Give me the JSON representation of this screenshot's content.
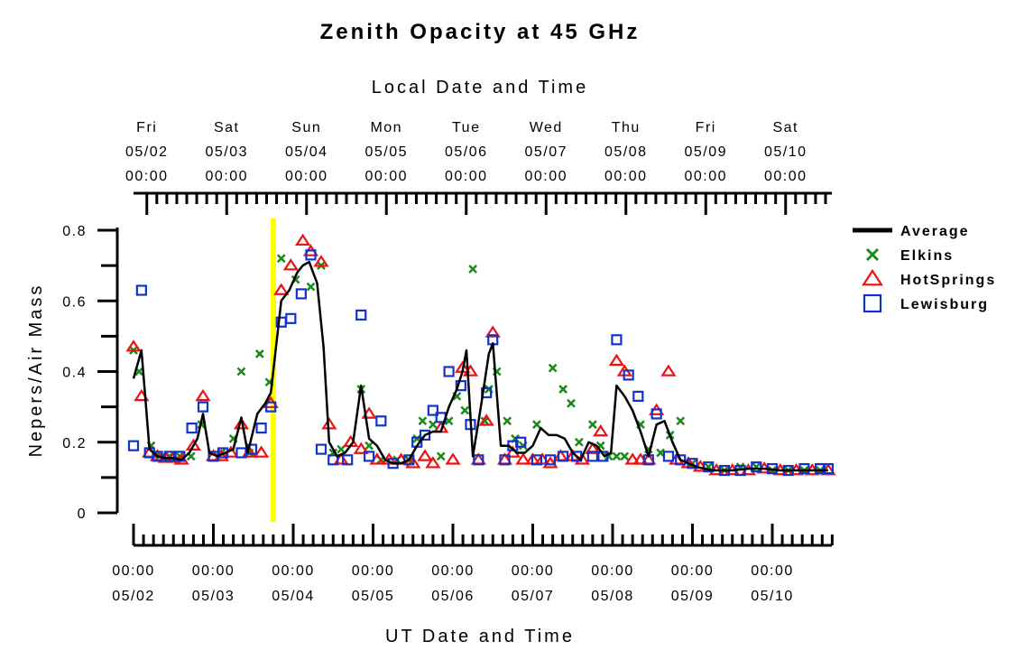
{
  "chart_data": {
    "type": "line",
    "title": "Zenith Opacity at 45 GHz",
    "top_axis": {
      "title": "Local Date and Time",
      "ticks": [
        {
          "day": "Fri",
          "date": "05/02",
          "time": "00:00"
        },
        {
          "day": "Sat",
          "date": "05/03",
          "time": "00:00"
        },
        {
          "day": "Sun",
          "date": "05/04",
          "time": "00:00"
        },
        {
          "day": "Mon",
          "date": "05/05",
          "time": "00:00"
        },
        {
          "day": "Tue",
          "date": "05/06",
          "time": "00:00"
        },
        {
          "day": "Wed",
          "date": "05/07",
          "time": "00:00"
        },
        {
          "day": "Thu",
          "date": "05/08",
          "time": "00:00"
        },
        {
          "day": "Fri",
          "date": "05/09",
          "time": "00:00"
        },
        {
          "day": "Sat",
          "date": "05/10",
          "time": "00:00"
        }
      ]
    },
    "bottom_axis": {
      "title": "UT Date and Time",
      "ticks": [
        {
          "time": "00:00",
          "date": "05/02"
        },
        {
          "time": "00:00",
          "date": "05/03"
        },
        {
          "time": "00:00",
          "date": "05/04"
        },
        {
          "time": "00:00",
          "date": "05/05"
        },
        {
          "time": "00:00",
          "date": "05/06"
        },
        {
          "time": "00:00",
          "date": "05/07"
        },
        {
          "time": "00:00",
          "date": "05/08"
        },
        {
          "time": "00:00",
          "date": "05/09"
        },
        {
          "time": "00:00",
          "date": "05/10"
        }
      ]
    },
    "y_axis": {
      "title": "Nepers/Air Mass",
      "ticks": [
        "0",
        "0.2",
        "0.4",
        "0.6",
        "0.8"
      ],
      "range": [
        0,
        0.8
      ]
    },
    "x_range_days": [
      0,
      8.75
    ],
    "marker_line_x": 1.75,
    "colors": {
      "average": "#000000",
      "elkins": "#1a8a1a",
      "hotsprings": "#ee1111",
      "lewisburg": "#1133cc",
      "marker": "#ffff00"
    },
    "legend": [
      {
        "key": "average",
        "label": "Average",
        "symbol": "line-icon"
      },
      {
        "key": "elkins",
        "label": "Elkins",
        "symbol": "x-icon"
      },
      {
        "key": "hotsprings",
        "label": "HotSprings",
        "symbol": "triangle-icon"
      },
      {
        "key": "lewisburg",
        "label": "Lewisburg",
        "symbol": "square-icon"
      }
    ],
    "series": [
      {
        "name": "Average",
        "key": "average",
        "kind": "line",
        "points": [
          [
            0.0,
            0.38
          ],
          [
            0.1,
            0.46
          ],
          [
            0.2,
            0.18
          ],
          [
            0.3,
            0.16
          ],
          [
            0.4,
            0.155
          ],
          [
            0.5,
            0.155
          ],
          [
            0.6,
            0.15
          ],
          [
            0.7,
            0.17
          ],
          [
            0.8,
            0.21
          ],
          [
            0.87,
            0.28
          ],
          [
            0.95,
            0.17
          ],
          [
            1.05,
            0.16
          ],
          [
            1.15,
            0.17
          ],
          [
            1.25,
            0.18
          ],
          [
            1.35,
            0.27
          ],
          [
            1.43,
            0.17
          ],
          [
            1.55,
            0.28
          ],
          [
            1.65,
            0.31
          ],
          [
            1.72,
            0.34
          ],
          [
            1.85,
            0.6
          ],
          [
            1.95,
            0.63
          ],
          [
            2.05,
            0.68
          ],
          [
            2.12,
            0.7
          ],
          [
            2.2,
            0.71
          ],
          [
            2.3,
            0.65
          ],
          [
            2.38,
            0.47
          ],
          [
            2.45,
            0.2
          ],
          [
            2.55,
            0.16
          ],
          [
            2.65,
            0.17
          ],
          [
            2.75,
            0.2
          ],
          [
            2.85,
            0.36
          ],
          [
            2.95,
            0.21
          ],
          [
            3.05,
            0.19
          ],
          [
            3.15,
            0.15
          ],
          [
            3.25,
            0.14
          ],
          [
            3.35,
            0.14
          ],
          [
            3.45,
            0.15
          ],
          [
            3.55,
            0.19
          ],
          [
            3.65,
            0.22
          ],
          [
            3.75,
            0.23
          ],
          [
            3.85,
            0.23
          ],
          [
            3.95,
            0.3
          ],
          [
            4.05,
            0.35
          ],
          [
            4.12,
            0.4
          ],
          [
            4.17,
            0.46
          ],
          [
            4.25,
            0.16
          ],
          [
            4.35,
            0.3
          ],
          [
            4.45,
            0.45
          ],
          [
            4.5,
            0.48
          ],
          [
            4.6,
            0.19
          ],
          [
            4.7,
            0.19
          ],
          [
            4.8,
            0.17
          ],
          [
            4.9,
            0.17
          ],
          [
            5.0,
            0.19
          ],
          [
            5.1,
            0.24
          ],
          [
            5.2,
            0.22
          ],
          [
            5.3,
            0.22
          ],
          [
            5.4,
            0.21
          ],
          [
            5.5,
            0.17
          ],
          [
            5.6,
            0.15
          ],
          [
            5.7,
            0.2
          ],
          [
            5.8,
            0.19
          ],
          [
            5.9,
            0.16
          ],
          [
            5.98,
            0.17
          ],
          [
            6.05,
            0.36
          ],
          [
            6.15,
            0.33
          ],
          [
            6.25,
            0.29
          ],
          [
            6.35,
            0.23
          ],
          [
            6.45,
            0.16
          ],
          [
            6.55,
            0.25
          ],
          [
            6.65,
            0.26
          ],
          [
            6.75,
            0.2
          ],
          [
            6.85,
            0.15
          ],
          [
            6.95,
            0.14
          ],
          [
            7.05,
            0.13
          ],
          [
            7.15,
            0.125
          ],
          [
            7.25,
            0.12
          ],
          [
            7.35,
            0.12
          ],
          [
            7.5,
            0.12
          ],
          [
            7.7,
            0.125
          ],
          [
            7.9,
            0.125
          ],
          [
            8.1,
            0.12
          ],
          [
            8.3,
            0.12
          ],
          [
            8.5,
            0.12
          ],
          [
            8.7,
            0.12
          ]
        ]
      },
      {
        "name": "Elkins",
        "key": "elkins",
        "kind": "x",
        "points": [
          [
            0.0,
            0.46
          ],
          [
            0.07,
            0.4
          ],
          [
            0.22,
            0.19
          ],
          [
            0.32,
            0.16
          ],
          [
            0.45,
            0.16
          ],
          [
            0.58,
            0.16
          ],
          [
            0.72,
            0.16
          ],
          [
            0.85,
            0.25
          ],
          [
            1.1,
            0.17
          ],
          [
            1.25,
            0.21
          ],
          [
            1.35,
            0.4
          ],
          [
            1.45,
            0.17
          ],
          [
            1.58,
            0.45
          ],
          [
            1.7,
            0.37
          ],
          [
            1.85,
            0.72
          ],
          [
            2.03,
            0.66
          ],
          [
            2.22,
            0.64
          ],
          [
            2.35,
            0.7
          ],
          [
            2.5,
            0.17
          ],
          [
            2.6,
            0.18
          ],
          [
            2.85,
            0.35
          ],
          [
            2.95,
            0.19
          ],
          [
            3.1,
            0.15
          ],
          [
            3.3,
            0.15
          ],
          [
            3.45,
            0.15
          ],
          [
            3.55,
            0.21
          ],
          [
            3.62,
            0.26
          ],
          [
            3.75,
            0.25
          ],
          [
            3.85,
            0.16
          ],
          [
            3.95,
            0.26
          ],
          [
            4.05,
            0.33
          ],
          [
            4.15,
            0.29
          ],
          [
            4.25,
            0.69
          ],
          [
            4.4,
            0.26
          ],
          [
            4.45,
            0.35
          ],
          [
            4.55,
            0.4
          ],
          [
            4.68,
            0.26
          ],
          [
            4.78,
            0.21
          ],
          [
            4.88,
            0.19
          ],
          [
            5.05,
            0.25
          ],
          [
            5.25,
            0.41
          ],
          [
            5.38,
            0.35
          ],
          [
            5.48,
            0.31
          ],
          [
            5.58,
            0.2
          ],
          [
            5.75,
            0.25
          ],
          [
            5.85,
            0.19
          ],
          [
            5.95,
            0.16
          ],
          [
            6.05,
            0.16
          ],
          [
            6.15,
            0.16
          ],
          [
            6.35,
            0.25
          ],
          [
            6.45,
            0.18
          ],
          [
            6.6,
            0.17
          ],
          [
            6.72,
            0.22
          ],
          [
            6.85,
            0.26
          ],
          [
            7.0,
            0.14
          ],
          [
            7.2,
            0.13
          ],
          [
            7.4,
            0.12
          ],
          [
            7.6,
            0.13
          ],
          [
            7.8,
            0.13
          ],
          [
            8.0,
            0.12
          ],
          [
            8.2,
            0.12
          ],
          [
            8.4,
            0.12
          ],
          [
            8.6,
            0.12
          ]
        ]
      },
      {
        "name": "HotSprings",
        "key": "hotsprings",
        "kind": "triangle",
        "points": [
          [
            0.0,
            0.47
          ],
          [
            0.1,
            0.33
          ],
          [
            0.2,
            0.17
          ],
          [
            0.3,
            0.16
          ],
          [
            0.4,
            0.155
          ],
          [
            0.5,
            0.155
          ],
          [
            0.6,
            0.15
          ],
          [
            0.75,
            0.19
          ],
          [
            0.87,
            0.33
          ],
          [
            1.0,
            0.16
          ],
          [
            1.1,
            0.16
          ],
          [
            1.22,
            0.17
          ],
          [
            1.35,
            0.25
          ],
          [
            1.45,
            0.17
          ],
          [
            1.6,
            0.17
          ],
          [
            1.72,
            0.31
          ],
          [
            1.85,
            0.63
          ],
          [
            1.97,
            0.7
          ],
          [
            2.12,
            0.77
          ],
          [
            2.22,
            0.74
          ],
          [
            2.35,
            0.71
          ],
          [
            2.45,
            0.25
          ],
          [
            2.6,
            0.15
          ],
          [
            2.72,
            0.2
          ],
          [
            2.85,
            0.18
          ],
          [
            2.95,
            0.28
          ],
          [
            3.05,
            0.15
          ],
          [
            3.2,
            0.15
          ],
          [
            3.35,
            0.15
          ],
          [
            3.5,
            0.14
          ],
          [
            3.65,
            0.16
          ],
          [
            3.75,
            0.14
          ],
          [
            3.85,
            0.24
          ],
          [
            4.0,
            0.15
          ],
          [
            4.12,
            0.41
          ],
          [
            4.22,
            0.4
          ],
          [
            4.32,
            0.15
          ],
          [
            4.42,
            0.26
          ],
          [
            4.5,
            0.51
          ],
          [
            4.65,
            0.15
          ],
          [
            4.75,
            0.17
          ],
          [
            4.88,
            0.15
          ],
          [
            5.0,
            0.15
          ],
          [
            5.12,
            0.15
          ],
          [
            5.22,
            0.14
          ],
          [
            5.35,
            0.16
          ],
          [
            5.5,
            0.16
          ],
          [
            5.62,
            0.15
          ],
          [
            5.75,
            0.18
          ],
          [
            5.85,
            0.23
          ],
          [
            6.05,
            0.43
          ],
          [
            6.15,
            0.4
          ],
          [
            6.25,
            0.15
          ],
          [
            6.35,
            0.15
          ],
          [
            6.45,
            0.15
          ],
          [
            6.55,
            0.29
          ],
          [
            6.7,
            0.4
          ],
          [
            6.8,
            0.15
          ],
          [
            6.95,
            0.14
          ],
          [
            7.1,
            0.13
          ],
          [
            7.3,
            0.12
          ],
          [
            7.5,
            0.12
          ],
          [
            7.7,
            0.12
          ],
          [
            7.9,
            0.125
          ],
          [
            8.1,
            0.12
          ],
          [
            8.3,
            0.12
          ],
          [
            8.5,
            0.12
          ],
          [
            8.7,
            0.12
          ]
        ]
      },
      {
        "name": "Lewisburg",
        "key": "lewisburg",
        "kind": "square",
        "points": [
          [
            0.0,
            0.19
          ],
          [
            0.1,
            0.63
          ],
          [
            0.2,
            0.17
          ],
          [
            0.3,
            0.16
          ],
          [
            0.45,
            0.16
          ],
          [
            0.58,
            0.16
          ],
          [
            0.73,
            0.24
          ],
          [
            0.87,
            0.3
          ],
          [
            1.0,
            0.16
          ],
          [
            1.12,
            0.17
          ],
          [
            1.35,
            0.17
          ],
          [
            1.48,
            0.18
          ],
          [
            1.6,
            0.24
          ],
          [
            1.72,
            0.3
          ],
          [
            1.85,
            0.54
          ],
          [
            1.97,
            0.55
          ],
          [
            2.1,
            0.62
          ],
          [
            2.22,
            0.73
          ],
          [
            2.35,
            0.18
          ],
          [
            2.5,
            0.15
          ],
          [
            2.68,
            0.15
          ],
          [
            2.85,
            0.56
          ],
          [
            2.95,
            0.16
          ],
          [
            3.1,
            0.26
          ],
          [
            3.25,
            0.14
          ],
          [
            3.45,
            0.15
          ],
          [
            3.55,
            0.2
          ],
          [
            3.65,
            0.22
          ],
          [
            3.75,
            0.29
          ],
          [
            3.85,
            0.27
          ],
          [
            3.95,
            0.4
          ],
          [
            4.1,
            0.36
          ],
          [
            4.22,
            0.25
          ],
          [
            4.32,
            0.15
          ],
          [
            4.42,
            0.34
          ],
          [
            4.5,
            0.49
          ],
          [
            4.65,
            0.15
          ],
          [
            4.75,
            0.19
          ],
          [
            4.85,
            0.2
          ],
          [
            5.05,
            0.15
          ],
          [
            5.22,
            0.15
          ],
          [
            5.38,
            0.16
          ],
          [
            5.55,
            0.16
          ],
          [
            5.75,
            0.16
          ],
          [
            5.88,
            0.16
          ],
          [
            6.05,
            0.49
          ],
          [
            6.2,
            0.39
          ],
          [
            6.32,
            0.33
          ],
          [
            6.45,
            0.15
          ],
          [
            6.55,
            0.28
          ],
          [
            6.7,
            0.16
          ],
          [
            6.85,
            0.15
          ],
          [
            7.0,
            0.14
          ],
          [
            7.2,
            0.13
          ],
          [
            7.4,
            0.12
          ],
          [
            7.6,
            0.12
          ],
          [
            7.8,
            0.13
          ],
          [
            8.0,
            0.125
          ],
          [
            8.2,
            0.12
          ],
          [
            8.4,
            0.125
          ],
          [
            8.6,
            0.125
          ],
          [
            8.7,
            0.125
          ]
        ]
      }
    ]
  }
}
